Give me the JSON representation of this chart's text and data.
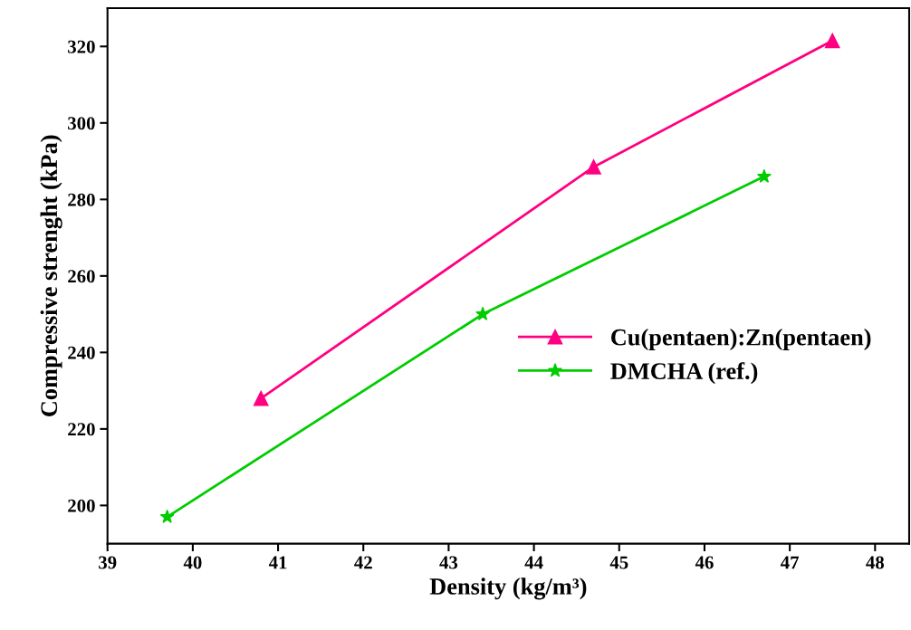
{
  "chart_data": {
    "type": "line",
    "xlabel": "Density (kg/m³)",
    "ylabel": "Compressive strenght (kPa)",
    "xlim": [
      39,
      48.4
    ],
    "xticks": [
      39,
      40,
      41,
      42,
      43,
      44,
      45,
      46,
      47,
      48
    ],
    "ylim": [
      190,
      330
    ],
    "yticks": [
      200,
      220,
      240,
      260,
      280,
      300,
      320
    ],
    "grid": false,
    "legend": "right",
    "series": [
      {
        "name": "Cu(pentaen):Zn(pentaen)",
        "color": "#ff0080",
        "marker": "triangle",
        "x": [
          40.8,
          44.7,
          47.5
        ],
        "values": [
          228,
          288.5,
          321.5
        ]
      },
      {
        "name": "DMCHA (ref.)",
        "color": "#00cc00",
        "marker": "star",
        "x": [
          39.7,
          43.4,
          46.7
        ],
        "values": [
          197,
          250,
          286
        ]
      }
    ]
  }
}
